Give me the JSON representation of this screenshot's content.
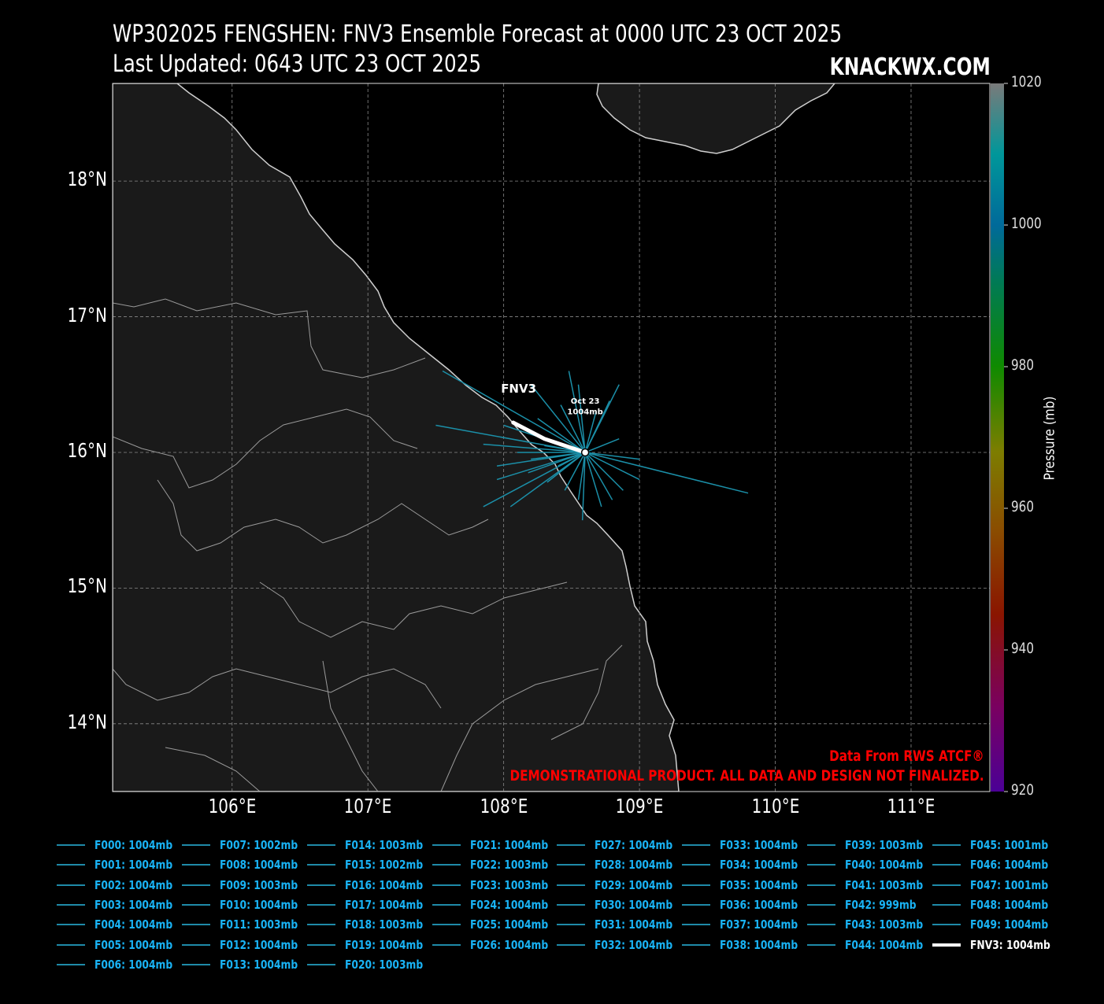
{
  "header": {
    "title": "WP302025 FENGSHEN: FNV3 Ensemble Forecast at 0000 UTC 23 OCT 2025",
    "updated": "Last Updated: 0643 UTC 23 OCT 2025",
    "brand": "KNACKWX.COM"
  },
  "map": {
    "lon_range": [
      105.12,
      111.58
    ],
    "lat_range": [
      13.5,
      18.72
    ],
    "lat_ticks": [
      {
        "value": 18,
        "label": "18°N"
      },
      {
        "value": 17,
        "label": "17°N"
      },
      {
        "value": 16,
        "label": "16°N"
      },
      {
        "value": 15,
        "label": "15°N"
      },
      {
        "value": 14,
        "label": "14°N"
      }
    ],
    "lon_ticks": [
      {
        "value": 106,
        "label": "106°E"
      },
      {
        "value": 107,
        "label": "107°E"
      },
      {
        "value": 108,
        "label": "108°E"
      },
      {
        "value": 109,
        "label": "109°E"
      },
      {
        "value": 110,
        "label": "110°E"
      },
      {
        "value": 111,
        "label": "111°E"
      }
    ],
    "colors": {
      "land": "#191919",
      "ocean": "#000000",
      "coast": "#c8c8c8",
      "grid": "#8a8a8a",
      "ensemble": "#1b8fa8",
      "mean_track": "#ffffff"
    }
  },
  "storm": {
    "model_label": "FNV3",
    "point_label_date": "Oct 23",
    "point_label_pressure": "1004mb",
    "start": {
      "lon": 108.6,
      "lat": 16.0
    },
    "fnv3_track": [
      {
        "lon": 108.6,
        "lat": 16.0
      },
      {
        "lon": 108.3,
        "lat": 16.1
      },
      {
        "lon": 108.07,
        "lat": 16.22
      }
    ],
    "ensemble_endpoints": [
      {
        "lon": 107.55,
        "lat": 16.6
      },
      {
        "lon": 107.5,
        "lat": 16.2
      },
      {
        "lon": 107.85,
        "lat": 16.06
      },
      {
        "lon": 108.0,
        "lat": 16.2
      },
      {
        "lon": 108.2,
        "lat": 16.5
      },
      {
        "lon": 108.48,
        "lat": 16.6
      },
      {
        "lon": 108.55,
        "lat": 16.5
      },
      {
        "lon": 108.85,
        "lat": 16.5
      },
      {
        "lon": 108.78,
        "lat": 16.38
      },
      {
        "lon": 108.85,
        "lat": 16.1
      },
      {
        "lon": 108.1,
        "lat": 16.0
      },
      {
        "lon": 108.2,
        "lat": 15.95
      },
      {
        "lon": 107.95,
        "lat": 15.9
      },
      {
        "lon": 107.95,
        "lat": 15.8
      },
      {
        "lon": 107.85,
        "lat": 15.6
      },
      {
        "lon": 108.05,
        "lat": 15.6
      },
      {
        "lon": 108.18,
        "lat": 15.85
      },
      {
        "lon": 108.32,
        "lat": 15.78
      },
      {
        "lon": 108.45,
        "lat": 15.72
      },
      {
        "lon": 108.55,
        "lat": 15.65
      },
      {
        "lon": 108.58,
        "lat": 15.5
      },
      {
        "lon": 108.72,
        "lat": 15.6
      },
      {
        "lon": 108.8,
        "lat": 15.65
      },
      {
        "lon": 108.88,
        "lat": 15.72
      },
      {
        "lon": 109.0,
        "lat": 15.8
      },
      {
        "lon": 109.8,
        "lat": 15.7
      },
      {
        "lon": 109.0,
        "lat": 15.95
      },
      {
        "lon": 108.3,
        "lat": 16.05
      },
      {
        "lon": 108.25,
        "lat": 16.25
      },
      {
        "lon": 108.42,
        "lat": 16.35
      },
      {
        "lon": 108.68,
        "lat": 16.3
      },
      {
        "lon": 108.4,
        "lat": 15.9
      }
    ]
  },
  "colorbar": {
    "label": "Pressure (mb)",
    "range": [
      920,
      1020
    ],
    "ticks": [
      {
        "value": 1020,
        "label": "1020"
      },
      {
        "value": 1000,
        "label": "1000"
      },
      {
        "value": 980,
        "label": "980"
      },
      {
        "value": 960,
        "label": "960"
      },
      {
        "value": 940,
        "label": "940"
      },
      {
        "value": 920,
        "label": "920"
      }
    ],
    "gradient": [
      {
        "value": 920,
        "color": "#4b0096"
      },
      {
        "value": 932,
        "color": "#7a0060"
      },
      {
        "value": 945,
        "color": "#8a1500"
      },
      {
        "value": 957,
        "color": "#8a4d00"
      },
      {
        "value": 968,
        "color": "#7d7d00"
      },
      {
        "value": 980,
        "color": "#0f8a00"
      },
      {
        "value": 992,
        "color": "#007a55"
      },
      {
        "value": 1000,
        "color": "#006a9a"
      },
      {
        "value": 1010,
        "color": "#00979a"
      },
      {
        "value": 1020,
        "color": "#7a7a7a"
      }
    ]
  },
  "credits": {
    "line1": "Data From RWS ATCF®",
    "line2": "DEMONSTRATIONAL PRODUCT. ALL DATA AND DESIGN NOT FINALIZED."
  },
  "legend": [
    [
      "F000: 1004mb",
      "F001: 1004mb",
      "F002: 1004mb",
      "F003: 1004mb",
      "F004: 1004mb",
      "F005: 1004mb",
      "F006: 1004mb"
    ],
    [
      "F007: 1002mb",
      "F008: 1004mb",
      "F009: 1003mb",
      "F010: 1004mb",
      "F011: 1003mb",
      "F012: 1004mb",
      "F013: 1004mb"
    ],
    [
      "F014: 1003mb",
      "F015: 1002mb",
      "F016: 1004mb",
      "F017: 1004mb",
      "F018: 1003mb",
      "F019: 1004mb",
      "F020: 1003mb"
    ],
    [
      "F021: 1004mb",
      "F022: 1003mb",
      "F023: 1003mb",
      "F024: 1004mb",
      "F025: 1004mb",
      "F026: 1004mb"
    ],
    [
      "F027: 1004mb",
      "F028: 1004mb",
      "F029: 1004mb",
      "F030: 1004mb",
      "F031: 1004mb",
      "F032: 1004mb"
    ],
    [
      "F033: 1004mb",
      "F034: 1004mb",
      "F035: 1004mb",
      "F036: 1004mb",
      "F037: 1004mb",
      "F038: 1004mb"
    ],
    [
      "F039: 1003mb",
      "F040: 1004mb",
      "F041: 1003mb",
      "F042: 999mb",
      "F043: 1003mb",
      "F044: 1004mb"
    ],
    [
      "F045: 1001mb",
      "F046: 1004mb",
      "F047: 1001mb",
      "F048: 1004mb",
      "F049: 1004mb"
    ]
  ],
  "legend_fnv3": "FNV3: 1004mb"
}
